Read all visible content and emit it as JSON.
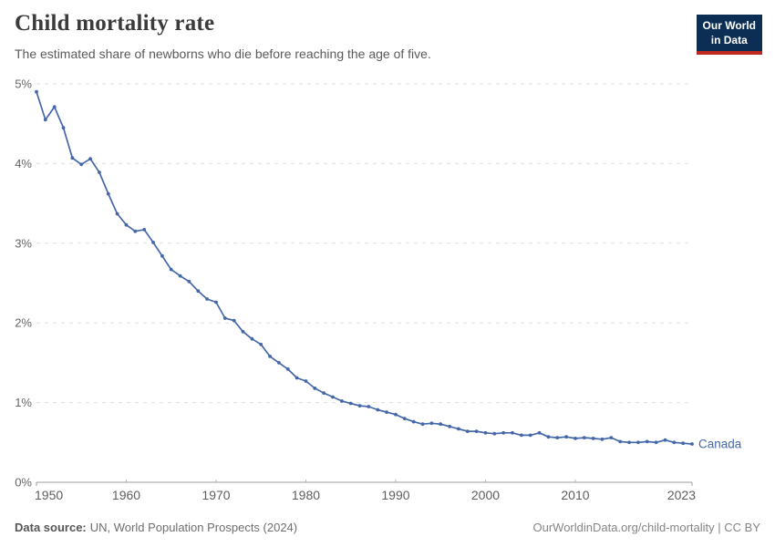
{
  "header": {
    "title": "Child mortality rate",
    "subtitle": "The estimated share of newborns who die before reaching the age of five."
  },
  "logo": {
    "line1": "Our World",
    "line2": "in Data",
    "bg_color": "#0c2d54",
    "accent_color": "#c0291e",
    "text_color": "#ffffff"
  },
  "footer": {
    "source_label": "Data source:",
    "source_text": "UN, World Population Prospects (2024)",
    "link_text": "OurWorldinData.org/child-mortality | CC BY"
  },
  "colors": {
    "line": "#4567a9",
    "gridline": "#e0e0e0",
    "axis": "#9e9e9e",
    "tick": "#b5b5b5",
    "y_label": "#666666",
    "x_label": "#5e5e5e",
    "title": "#3b3b3b",
    "subtitle": "#5a5a5a"
  },
  "chart_data": {
    "type": "line",
    "title": "Child mortality rate",
    "xlabel": "",
    "ylabel": "",
    "grid": "horizontal-dashed",
    "legend_position": "end-of-line-label",
    "xlim": [
      1950,
      2023
    ],
    "ylim": [
      0,
      5
    ],
    "xticks": [
      1950,
      1960,
      1970,
      1980,
      1990,
      2000,
      2010,
      2023
    ],
    "xtick_labels": [
      "1950",
      "1960",
      "1970",
      "1980",
      "1990",
      "2000",
      "2010",
      "2023"
    ],
    "yticks": [
      0,
      1,
      2,
      3,
      4,
      5
    ],
    "ytick_labels": [
      "0%",
      "1%",
      "2%",
      "3%",
      "4%",
      "5%"
    ],
    "series": [
      {
        "name": "Canada",
        "end_label": "Canada",
        "color": "#4567a9",
        "x": [
          1950,
          1951,
          1952,
          1953,
          1954,
          1955,
          1956,
          1957,
          1958,
          1959,
          1960,
          1961,
          1962,
          1963,
          1964,
          1965,
          1966,
          1967,
          1968,
          1969,
          1970,
          1971,
          1972,
          1973,
          1974,
          1975,
          1976,
          1977,
          1978,
          1979,
          1980,
          1981,
          1982,
          1983,
          1984,
          1985,
          1986,
          1987,
          1988,
          1989,
          1990,
          1991,
          1992,
          1993,
          1994,
          1995,
          1996,
          1997,
          1998,
          1999,
          2000,
          2001,
          2002,
          2003,
          2004,
          2005,
          2006,
          2007,
          2008,
          2009,
          2010,
          2011,
          2012,
          2013,
          2014,
          2015,
          2016,
          2017,
          2018,
          2019,
          2020,
          2021,
          2022,
          2023
        ],
        "values": [
          4.9,
          4.55,
          4.71,
          4.45,
          4.07,
          3.99,
          4.06,
          3.89,
          3.62,
          3.37,
          3.23,
          3.15,
          3.17,
          3.01,
          2.84,
          2.67,
          2.59,
          2.52,
          2.4,
          2.3,
          2.26,
          2.06,
          2.03,
          1.89,
          1.8,
          1.73,
          1.58,
          1.5,
          1.42,
          1.31,
          1.27,
          1.18,
          1.12,
          1.07,
          1.02,
          0.99,
          0.96,
          0.95,
          0.91,
          0.88,
          0.85,
          0.8,
          0.76,
          0.73,
          0.74,
          0.73,
          0.7,
          0.67,
          0.64,
          0.64,
          0.62,
          0.61,
          0.62,
          0.62,
          0.59,
          0.59,
          0.62,
          0.57,
          0.56,
          0.57,
          0.55,
          0.56,
          0.55,
          0.54,
          0.56,
          0.51,
          0.5,
          0.5,
          0.51,
          0.5,
          0.53,
          0.5,
          0.49,
          0.48
        ]
      }
    ]
  }
}
